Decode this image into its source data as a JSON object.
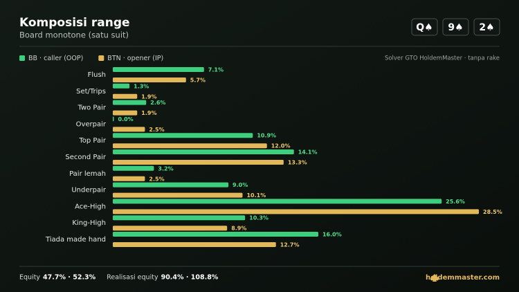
{
  "chart_data": {
    "type": "bar",
    "orientation": "horizontal",
    "title": "Komposisi range",
    "subtitle": "Board monotone (satu suit)",
    "board": [
      "Q♠",
      "9♠",
      "2♠"
    ],
    "note": "Solver GTO HoldemMaster · tanpa rake",
    "categories": [
      "Flush",
      "Set/Trips",
      "Two Pair",
      "Overpair",
      "Top Pair",
      "Second Pair",
      "Pair lemah",
      "Underpair",
      "Ace-High",
      "King-High",
      "Tiada made hand"
    ],
    "series": [
      {
        "name": "BB · caller (OOP)",
        "color": "#3ecf7e",
        "values": [
          7.1,
          1.3,
          2.6,
          0.0,
          10.9,
          14.1,
          3.2,
          9.0,
          25.6,
          10.3,
          16.0
        ],
        "value_labels": [
          "7.1%",
          "1.3%",
          "2.6%",
          "0.0%",
          "10.9%",
          "14.1%",
          "3.2%",
          "9.0%",
          "25.6%",
          "10.3%",
          "16.0%"
        ]
      },
      {
        "name": "BTN · opener (IP)",
        "color": "#e2b85a",
        "values": [
          5.7,
          1.9,
          1.9,
          2.5,
          12.0,
          13.3,
          2.5,
          10.1,
          28.5,
          8.9,
          12.7
        ],
        "value_labels": [
          "5.7%",
          "1.9%",
          "1.9%",
          "2.5%",
          "12.0%",
          "13.3%",
          "2.5%",
          "10.1%",
          "28.5%",
          "8.9%",
          "12.7%"
        ]
      }
    ],
    "footer": {
      "items": [
        {
          "label": "Equity",
          "value": "47.7% · 52.3%"
        },
        {
          "label": "Realisasi equity",
          "value": "90.4% · 108.8%"
        }
      ],
      "site": "holdemmaster.com"
    }
  }
}
